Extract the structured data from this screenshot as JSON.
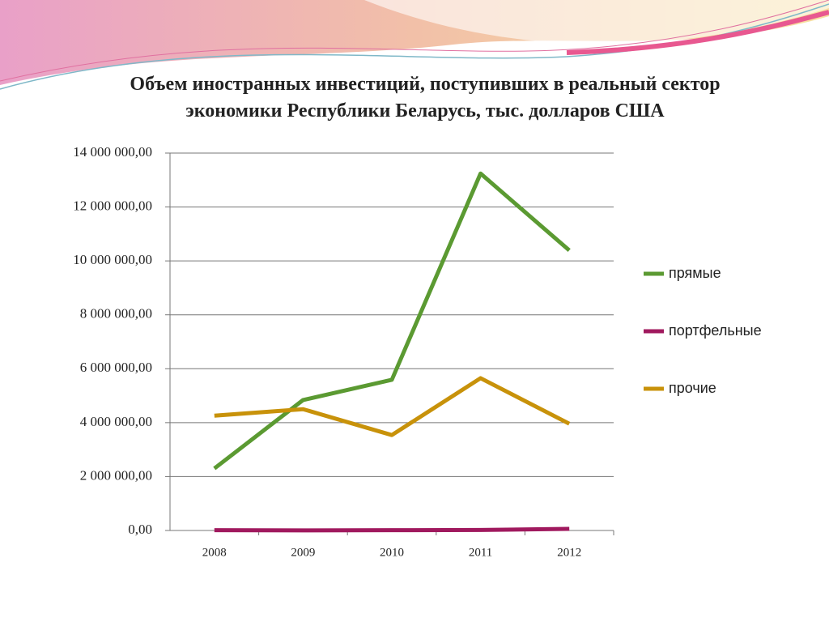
{
  "chart_data": {
    "type": "line",
    "title": "Объем иностранных инвестиций, поступивших в реальный сектор экономики Республики Беларусь, тыс. долларов США",
    "categories": [
      "2008",
      "2009",
      "2010",
      "2011",
      "2012"
    ],
    "series": [
      {
        "name": "прямые",
        "color": "#5b9a32",
        "values": [
          2300000,
          4840000,
          5590000,
          13240000,
          10390000
        ]
      },
      {
        "name": "портфельные",
        "color": "#a0195e",
        "values": [
          10000,
          5000,
          10000,
          20000,
          60000
        ]
      },
      {
        "name": "прочие",
        "color": "#c8920a",
        "values": [
          4260000,
          4500000,
          3540000,
          5650000,
          3960000
        ]
      }
    ],
    "ylim": [
      0,
      14000000
    ],
    "yticks": [
      {
        "value": 0,
        "label": "0,00"
      },
      {
        "value": 2000000,
        "label": "2 000 000,00"
      },
      {
        "value": 4000000,
        "label": "4 000 000,00"
      },
      {
        "value": 6000000,
        "label": "6 000 000,00"
      },
      {
        "value": 8000000,
        "label": "8 000 000,00"
      },
      {
        "value": 10000000,
        "label": "10 000 000,00"
      },
      {
        "value": 12000000,
        "label": "12 000 000,00"
      },
      {
        "value": 14000000,
        "label": "14 000 000,00"
      }
    ],
    "grid": true,
    "legend": "right"
  }
}
